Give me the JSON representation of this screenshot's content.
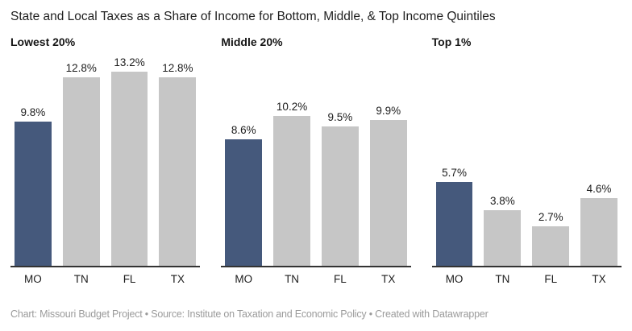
{
  "title": "State and Local Taxes as a Share of Income for Bottom, Middle, & Top Income Quintiles",
  "footer": "Chart: Missouri Budget Project • Source: Institute on Taxation and Economic Policy • Created with Datawrapper",
  "colors": {
    "highlight_bar": "#45597c",
    "default_bar": "#c6c6c6",
    "axis_line": "#333333",
    "label_text": "#1d1d1d",
    "footer_text": "#9b9b9b",
    "background": "#ffffff"
  },
  "chart_data": {
    "type": "bar",
    "title": "State and Local Taxes as a Share of Income for Bottom, Middle, & Top Income Quintiles",
    "categories": [
      "MO",
      "TN",
      "FL",
      "TX"
    ],
    "unit": "%",
    "highlight_category": "MO",
    "value_labels": true,
    "grid": false,
    "legend": "none",
    "ylim": [
      0,
      13.2
    ],
    "panels": [
      {
        "label": "Lowest 20%",
        "values": [
          9.8,
          12.8,
          13.2,
          12.8
        ]
      },
      {
        "label": "Middle 20%",
        "values": [
          8.6,
          10.2,
          9.5,
          9.9
        ]
      },
      {
        "label": "Top 1%",
        "values": [
          5.7,
          3.8,
          2.7,
          4.6
        ]
      }
    ]
  }
}
